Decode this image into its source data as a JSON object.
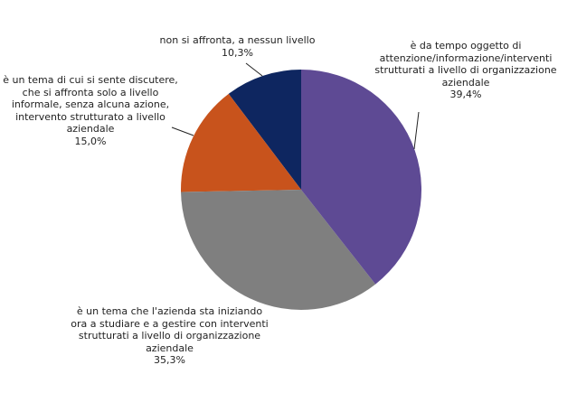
{
  "chart_data": {
    "type": "pie",
    "categories": [
      "è da tempo oggetto di attenzione/informazione/interventi strutturati a livello di organizzazione aziendale",
      "è un tema che l'azienda sta iniziando ora a studiare e a gestire con interventi strutturati a livello di organizzazione aziendale",
      "è un tema di cui si sente discutere, che si affronta solo a livello informale, senza alcuna azione, intervento strutturato a livello aziendale",
      "non si affronta, a nessun livello"
    ],
    "values": [
      39.4,
      35.3,
      15.0,
      10.3
    ],
    "value_labels": [
      "39,4%",
      "35,3%",
      "15,0%",
      "10,3%"
    ],
    "colors": [
      "#5e4a94",
      "#7f7f7f",
      "#c8531c",
      "#0e2660"
    ]
  }
}
